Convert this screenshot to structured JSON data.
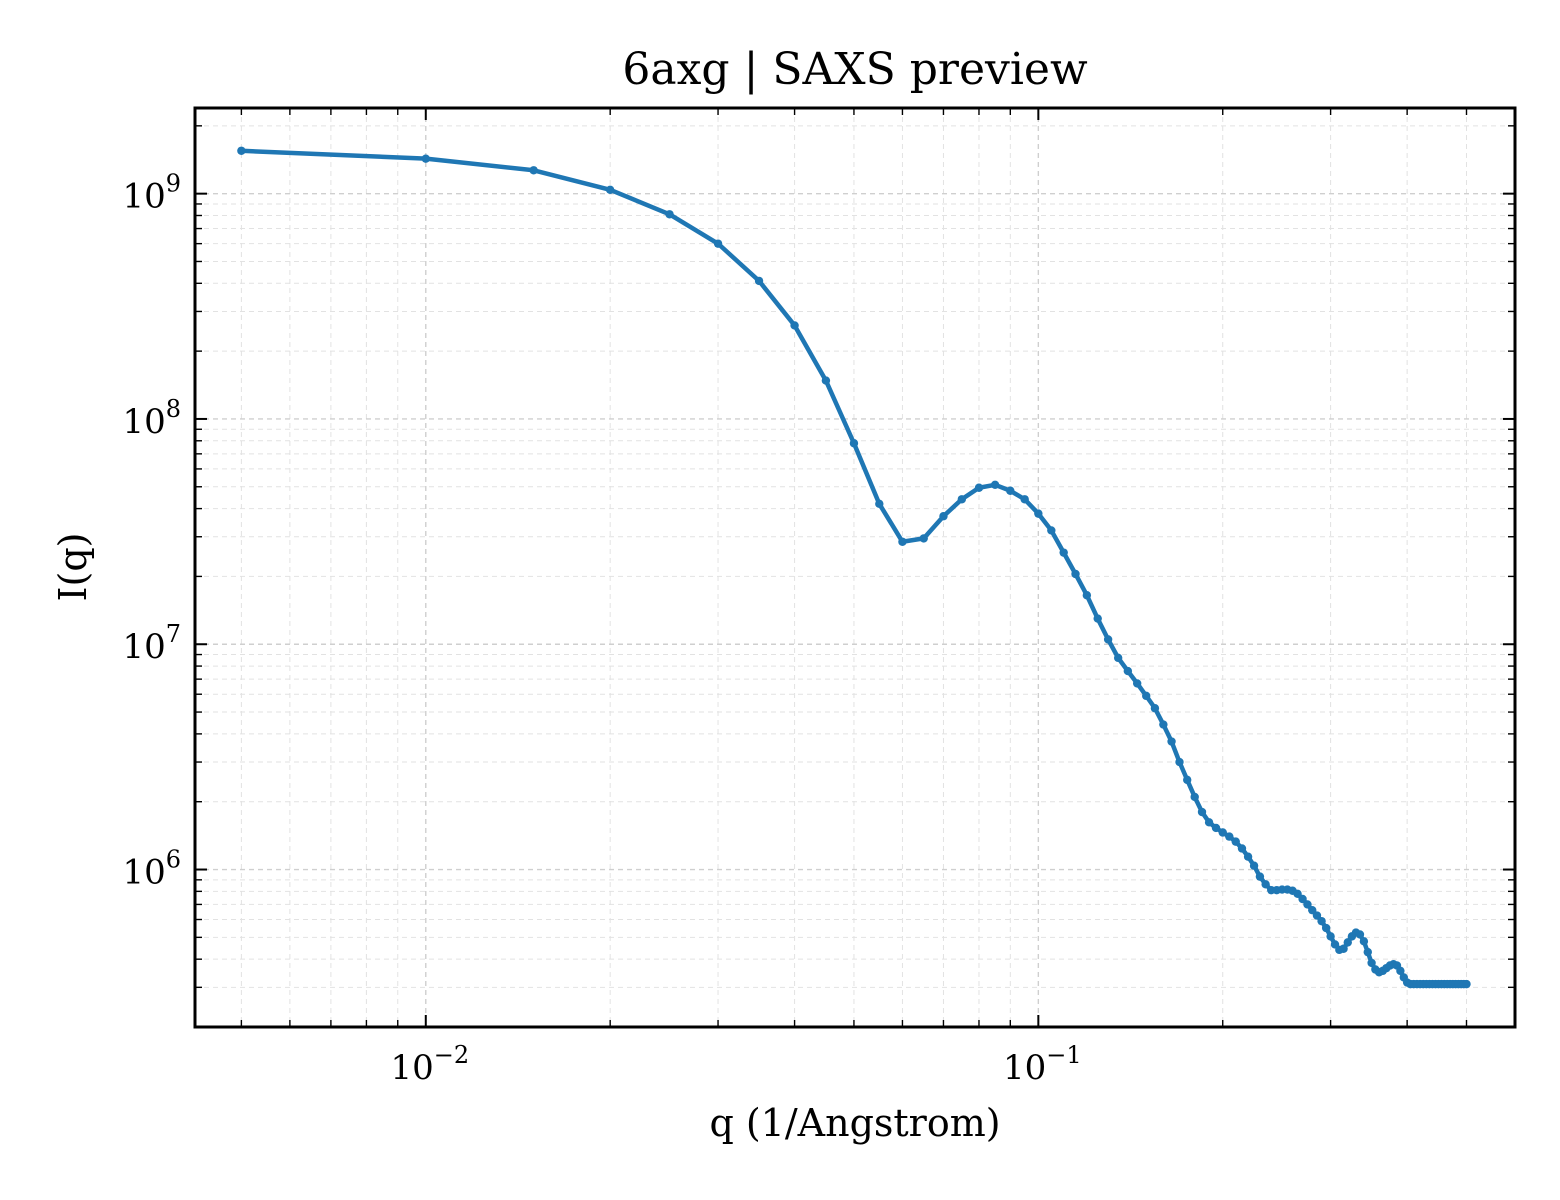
{
  "chart_data": {
    "type": "line",
    "title": "6axg | SAXS preview",
    "xlabel": "q (1/Angstrom)",
    "ylabel": "I(q)",
    "xscale": "log",
    "yscale": "log",
    "xlim": [
      0.0042,
      0.6
    ],
    "ylim": [
      200000,
      2400000000
    ],
    "grid": true,
    "grid_style": "dashed major and minor",
    "x_ticks": [
      {
        "value": 0.01,
        "base": "10",
        "exp": "−2"
      },
      {
        "value": 0.1,
        "base": "10",
        "exp": "−1"
      }
    ],
    "y_ticks": [
      {
        "value": 1000000,
        "base": "10",
        "exp": "6"
      },
      {
        "value": 10000000,
        "base": "10",
        "exp": "7"
      },
      {
        "value": 100000000,
        "base": "10",
        "exp": "8"
      },
      {
        "value": 1000000000,
        "base": "10",
        "exp": "9"
      }
    ],
    "series": [
      {
        "color": "#1f77b4",
        "marker": "dot",
        "x": [
          0.005,
          0.01,
          0.015,
          0.02,
          0.025,
          0.03,
          0.035,
          0.04,
          0.045,
          0.05,
          0.055,
          0.06,
          0.065,
          0.07,
          0.075,
          0.08,
          0.085,
          0.09,
          0.095,
          0.1,
          0.105,
          0.11,
          0.115,
          0.12,
          0.125,
          0.13,
          0.135,
          0.14,
          0.145,
          0.15,
          0.155,
          0.16,
          0.165,
          0.17,
          0.175,
          0.18,
          0.185,
          0.19,
          0.195,
          0.2,
          0.205,
          0.21,
          0.215,
          0.22,
          0.225,
          0.23,
          0.235,
          0.24,
          0.245,
          0.25,
          0.255,
          0.26,
          0.265,
          0.27,
          0.275,
          0.28,
          0.285,
          0.29,
          0.295,
          0.3,
          0.305,
          0.31,
          0.315,
          0.32,
          0.325,
          0.33,
          0.335,
          0.34,
          0.345,
          0.35,
          0.355,
          0.36,
          0.365,
          0.37,
          0.375,
          0.38,
          0.385,
          0.39,
          0.395,
          0.4,
          0.405,
          0.41,
          0.415,
          0.42,
          0.425,
          0.43,
          0.435,
          0.44,
          0.445,
          0.45,
          0.455,
          0.46,
          0.465,
          0.47,
          0.475,
          0.48,
          0.485,
          0.49,
          0.495,
          0.5
        ],
        "y": [
          1550000000,
          1430000000,
          1270000000,
          1040000000,
          810000000,
          600000000,
          410000000,
          260000000,
          148000000,
          78000000,
          42000000,
          28500000,
          29500000,
          37000000,
          44000000,
          49500000,
          51000000,
          48000000,
          44000000,
          38000000,
          32000000,
          25500000,
          20500000,
          16500000,
          13000000,
          10500000,
          8700000,
          7600000,
          6700000,
          5900000,
          5200000,
          4400000,
          3700000,
          3000000,
          2500000,
          2100000,
          1800000,
          1620000,
          1530000,
          1460000,
          1400000,
          1330000,
          1240000,
          1140000,
          1040000,
          930000,
          860000,
          810000,
          810000,
          815000,
          815000,
          805000,
          780000,
          740000,
          700000,
          660000,
          625000,
          590000,
          550000,
          505000,
          465000,
          440000,
          445000,
          475000,
          505000,
          525000,
          515000,
          480000,
          430000,
          385000,
          360000,
          350000,
          355000,
          365000,
          375000,
          380000,
          375000,
          355000,
          332000,
          315000,
          310000,
          310000,
          310000,
          310000,
          310000,
          310000,
          310000,
          310000,
          310000,
          310000,
          310000,
          310000,
          310000,
          310000,
          310000,
          310000,
          310000,
          310000,
          310000,
          310000
        ]
      }
    ]
  }
}
